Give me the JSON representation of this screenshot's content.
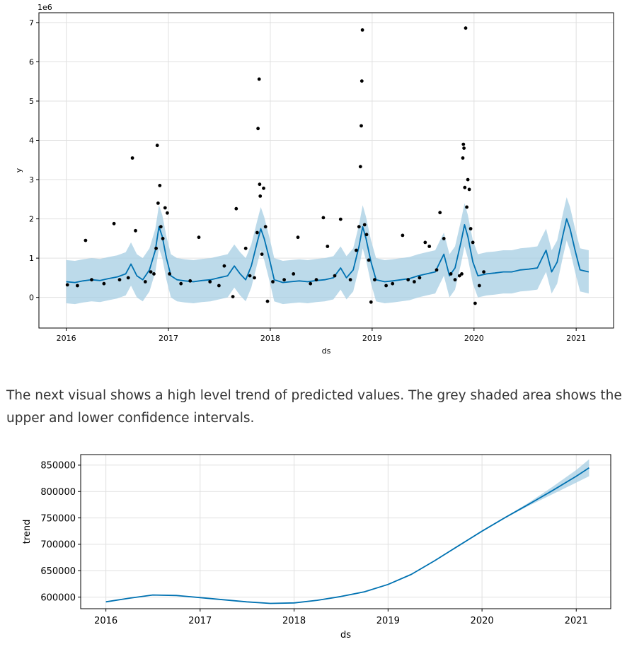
{
  "paragraph": "The next visual shows a high level trend of predicted values. The grey shaded area shows the upper and lower confidence intervals.",
  "colors": {
    "forecast_line": "#0072b2",
    "interval_fill": "#a6cee3",
    "points": "#000000",
    "grid": "#e0e0e0"
  },
  "chart_data": [
    {
      "type": "scatter",
      "xlabel": "ds",
      "ylabel": "y",
      "scale_label": "1e6",
      "x_ticks": [
        "2016",
        "2017",
        "2018",
        "2019",
        "2020",
        "2021"
      ],
      "y_ticks": [
        "0",
        "1",
        "2",
        "3",
        "4",
        "5",
        "6",
        "7"
      ],
      "xlim": [
        "2015-09-25",
        "2021-05-15"
      ],
      "ylim": [
        -0.78,
        7.25
      ],
      "grid": true,
      "series": [
        {
          "kind": "forecast",
          "x": [
            "2016-01-01",
            "2016-02-01",
            "2016-03-01",
            "2016-04-01",
            "2016-05-01",
            "2016-06-01",
            "2016-07-01",
            "2016-08-01",
            "2016-08-20",
            "2016-09-10",
            "2016-10-01",
            "2016-10-25",
            "2016-11-15",
            "2016-11-28",
            "2016-12-10",
            "2016-12-25",
            "2017-01-10",
            "2017-02-01",
            "2017-03-01",
            "2017-04-01",
            "2017-05-01",
            "2017-06-01",
            "2017-07-01",
            "2017-08-01",
            "2017-08-25",
            "2017-09-15",
            "2017-10-05",
            "2017-10-25",
            "2017-11-15",
            "2017-11-28",
            "2017-12-10",
            "2017-12-28",
            "2018-01-15",
            "2018-02-15",
            "2018-03-15",
            "2018-04-15",
            "2018-05-15",
            "2018-06-15",
            "2018-07-15",
            "2018-08-15",
            "2018-09-10",
            "2018-10-01",
            "2018-10-25",
            "2018-11-15",
            "2018-11-28",
            "2018-12-10",
            "2018-12-28",
            "2019-01-15",
            "2019-02-15",
            "2019-03-15",
            "2019-04-15",
            "2019-05-15",
            "2019-06-15",
            "2019-07-15",
            "2019-08-15",
            "2019-09-01",
            "2019-09-15",
            "2019-10-05",
            "2019-10-25",
            "2019-11-15",
            "2019-11-28",
            "2019-12-10",
            "2019-12-28",
            "2020-01-15",
            "2020-02-15",
            "2020-03-15",
            "2020-04-15",
            "2020-05-15",
            "2020-06-15",
            "2020-07-15",
            "2020-08-15",
            "2020-09-01",
            "2020-09-15",
            "2020-10-05",
            "2020-10-25",
            "2020-11-15",
            "2020-11-28",
            "2020-12-10",
            "2020-12-28",
            "2021-01-15",
            "2021-02-15"
          ],
          "yhat": [
            0.4,
            0.38,
            0.42,
            0.45,
            0.43,
            0.48,
            0.52,
            0.6,
            0.85,
            0.55,
            0.45,
            0.7,
            1.2,
            1.8,
            1.55,
            1.0,
            0.55,
            0.45,
            0.42,
            0.4,
            0.43,
            0.45,
            0.5,
            0.55,
            0.8,
            0.6,
            0.45,
            0.8,
            1.4,
            1.75,
            1.5,
            1.0,
            0.45,
            0.38,
            0.4,
            0.42,
            0.4,
            0.43,
            0.45,
            0.5,
            0.75,
            0.5,
            0.7,
            1.3,
            1.8,
            1.5,
            0.9,
            0.45,
            0.4,
            0.42,
            0.45,
            0.48,
            0.55,
            0.6,
            0.65,
            0.9,
            1.1,
            0.55,
            0.75,
            1.4,
            1.85,
            1.55,
            0.9,
            0.55,
            0.6,
            0.62,
            0.65,
            0.65,
            0.7,
            0.72,
            0.75,
            1.0,
            1.2,
            0.65,
            0.9,
            1.6,
            2.0,
            1.75,
            1.2,
            0.7,
            0.65
          ],
          "lower": [
            -0.15,
            -0.17,
            -0.13,
            -0.1,
            -0.12,
            -0.07,
            -0.03,
            0.05,
            0.3,
            0.0,
            -0.1,
            0.15,
            0.65,
            1.25,
            1.0,
            0.45,
            0.0,
            -0.1,
            -0.13,
            -0.15,
            -0.12,
            -0.1,
            -0.05,
            0.0,
            0.25,
            0.05,
            -0.1,
            0.25,
            0.85,
            1.2,
            0.95,
            0.45,
            -0.1,
            -0.17,
            -0.15,
            -0.13,
            -0.15,
            -0.12,
            -0.1,
            -0.05,
            0.2,
            -0.05,
            0.15,
            0.75,
            1.25,
            0.95,
            0.35,
            -0.1,
            -0.15,
            -0.13,
            -0.1,
            -0.07,
            0.0,
            0.05,
            0.1,
            0.35,
            0.55,
            0.0,
            0.2,
            0.85,
            1.3,
            1.0,
            0.35,
            0.0,
            0.05,
            0.07,
            0.1,
            0.1,
            0.15,
            0.17,
            0.2,
            0.45,
            0.65,
            0.1,
            0.35,
            1.05,
            1.45,
            1.2,
            0.65,
            0.15,
            0.1
          ],
          "upper": [
            0.95,
            0.93,
            0.97,
            1.0,
            0.98,
            1.03,
            1.07,
            1.15,
            1.4,
            1.1,
            1.0,
            1.25,
            1.75,
            2.35,
            2.1,
            1.55,
            1.1,
            1.0,
            0.97,
            0.95,
            0.98,
            1.0,
            1.05,
            1.1,
            1.35,
            1.15,
            1.0,
            1.35,
            1.95,
            2.3,
            2.05,
            1.55,
            1.0,
            0.93,
            0.95,
            0.97,
            0.95,
            0.98,
            1.0,
            1.05,
            1.3,
            1.05,
            1.25,
            1.85,
            2.35,
            2.05,
            1.45,
            1.0,
            0.95,
            0.97,
            1.0,
            1.03,
            1.1,
            1.15,
            1.2,
            1.45,
            1.65,
            1.1,
            1.3,
            1.95,
            2.4,
            2.1,
            1.45,
            1.1,
            1.15,
            1.17,
            1.2,
            1.2,
            1.25,
            1.27,
            1.3,
            1.55,
            1.75,
            1.2,
            1.45,
            2.15,
            2.55,
            2.3,
            1.75,
            1.25,
            1.2
          ]
        },
        {
          "kind": "observed",
          "x": [
            "2016-01-05",
            "2016-02-10",
            "2016-03-10",
            "2016-04-01",
            "2016-05-15",
            "2016-06-20",
            "2016-07-10",
            "2016-08-10",
            "2016-08-25",
            "2016-09-05",
            "2016-10-10",
            "2016-10-30",
            "2016-11-10",
            "2016-11-18",
            "2016-11-22",
            "2016-11-25",
            "2016-12-01",
            "2016-12-05",
            "2016-12-12",
            "2016-12-20",
            "2016-12-28",
            "2017-01-05",
            "2017-02-15",
            "2017-03-20",
            "2017-04-20",
            "2017-05-30",
            "2017-07-01",
            "2017-07-20",
            "2017-08-20",
            "2017-09-01",
            "2017-10-05",
            "2017-10-20",
            "2017-11-05",
            "2017-11-15",
            "2017-11-18",
            "2017-11-22",
            "2017-11-24",
            "2017-11-26",
            "2017-12-02",
            "2017-12-08",
            "2017-12-15",
            "2017-12-22",
            "2018-01-10",
            "2018-02-20",
            "2018-03-25",
            "2018-04-10",
            "2018-05-25",
            "2018-06-15",
            "2018-07-10",
            "2018-07-25",
            "2018-08-20",
            "2018-09-10",
            "2018-10-15",
            "2018-11-05",
            "2018-11-15",
            "2018-11-20",
            "2018-11-23",
            "2018-11-25",
            "2018-11-27",
            "2018-12-05",
            "2018-12-12",
            "2018-12-20",
            "2018-12-28",
            "2019-01-10",
            "2019-02-20",
            "2019-03-15",
            "2019-04-20",
            "2019-05-10",
            "2019-06-01",
            "2019-06-20",
            "2019-07-10",
            "2019-07-25",
            "2019-08-20",
            "2019-09-01",
            "2019-09-15",
            "2019-10-10",
            "2019-10-25",
            "2019-11-10",
            "2019-11-18",
            "2019-11-22",
            "2019-11-24",
            "2019-11-26",
            "2019-11-29",
            "2019-12-02",
            "2019-12-06",
            "2019-12-10",
            "2019-12-15",
            "2019-12-20",
            "2019-12-28",
            "2020-01-05",
            "2020-01-20",
            "2020-02-05"
          ],
          "y": [
            0.32,
            0.3,
            1.45,
            0.45,
            0.35,
            1.88,
            0.45,
            0.5,
            3.55,
            1.7,
            0.4,
            0.65,
            0.6,
            1.25,
            3.87,
            2.4,
            2.85,
            1.8,
            1.5,
            2.28,
            2.15,
            0.6,
            0.35,
            0.42,
            1.53,
            0.4,
            0.3,
            0.8,
            0.02,
            2.26,
            1.25,
            0.55,
            0.5,
            1.65,
            4.3,
            5.56,
            2.88,
            2.58,
            1.1,
            2.78,
            1.8,
            -0.1,
            0.4,
            0.45,
            0.6,
            1.53,
            0.35,
            0.45,
            2.03,
            1.3,
            0.55,
            1.99,
            0.45,
            1.2,
            1.8,
            3.33,
            4.37,
            5.51,
            6.81,
            1.85,
            1.6,
            0.95,
            -0.12,
            0.45,
            0.3,
            0.35,
            1.58,
            0.45,
            0.4,
            0.5,
            1.4,
            1.3,
            0.7,
            2.16,
            1.5,
            0.6,
            0.45,
            0.55,
            0.6,
            3.55,
            3.9,
            3.8,
            2.8,
            6.86,
            2.3,
            3.0,
            2.75,
            1.75,
            1.4,
            -0.15,
            0.3,
            0.65
          ]
        }
      ]
    },
    {
      "type": "line",
      "xlabel": "ds",
      "ylabel": "trend",
      "x_ticks": [
        "2016",
        "2017",
        "2018",
        "2019",
        "2020",
        "2021"
      ],
      "y_ticks": [
        "600000",
        "650000",
        "700000",
        "750000",
        "800000",
        "850000"
      ],
      "xlim": [
        "2015-09-25",
        "2021-05-15"
      ],
      "ylim": [
        578000,
        870000
      ],
      "grid": true,
      "series": [
        {
          "kind": "trend",
          "x": [
            "2016-01-01",
            "2016-04-01",
            "2016-07-01",
            "2016-10-01",
            "2017-01-01",
            "2017-04-01",
            "2017-07-01",
            "2017-10-01",
            "2018-01-01",
            "2018-04-01",
            "2018-07-01",
            "2018-10-01",
            "2019-01-01",
            "2019-04-01",
            "2019-07-01",
            "2019-10-01",
            "2020-01-01",
            "2020-04-01",
            "2020-07-01",
            "2020-10-01",
            "2021-01-01",
            "2021-02-20"
          ],
          "trend": [
            591000,
            598000,
            604000,
            603000,
            599000,
            595000,
            591000,
            588000,
            589000,
            594000,
            601000,
            610000,
            624000,
            643000,
            669000,
            697000,
            725000,
            751000,
            776000,
            802000,
            829000,
            845000
          ],
          "lower": [
            591000,
            598000,
            604000,
            603000,
            599000,
            595000,
            591000,
            588000,
            589000,
            594000,
            601000,
            610000,
            624000,
            643000,
            669000,
            697000,
            725000,
            750000,
            773000,
            795000,
            817000,
            829000
          ],
          "upper": [
            591000,
            598000,
            604000,
            603000,
            599000,
            595000,
            591000,
            588000,
            589000,
            594000,
            601000,
            610000,
            624000,
            643000,
            669000,
            697000,
            725000,
            752000,
            779000,
            809000,
            841000,
            861000
          ]
        }
      ]
    }
  ]
}
